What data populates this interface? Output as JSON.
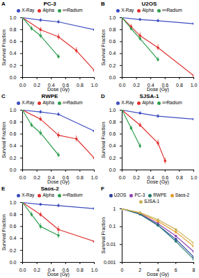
{
  "chart_data": [
    {
      "type": "line",
      "panel": "A",
      "title": "PC-3",
      "xlabel": "Dose (Gy)",
      "ylabel": "Survival Fraction",
      "xlim": [
        0,
        1
      ],
      "xticks": [
        {
          "value": 0,
          "label": "0.0"
        },
        {
          "value": 0.2,
          "label": "0.2"
        },
        {
          "value": 0.4,
          "label": "0.4"
        },
        {
          "value": 0.6,
          "label": "0.6"
        },
        {
          "value": 0.8,
          "label": "0.8"
        },
        {
          "value": 1,
          "label": "1.0"
        }
      ],
      "ylim": [
        0,
        1
      ],
      "yticks": [
        {
          "value": 0,
          "label": "0.0"
        },
        {
          "value": 0.2,
          "label": "0.2"
        },
        {
          "value": 0.4,
          "label": "0.4"
        },
        {
          "value": 0.6,
          "label": "0.6"
        },
        {
          "value": 0.8,
          "label": "0.8"
        },
        {
          "value": 1,
          "label": "1.0"
        }
      ],
      "legend": "top",
      "marker": "circle",
      "series": [
        {
          "name": "X-Ray",
          "color": "#3b4cc0",
          "x": [
            0,
            0.25,
            0.5,
            1
          ],
          "values": [
            1,
            0.96,
            0.93,
            0.8
          ],
          "errors": [
            0.02,
            0.03,
            0.03,
            0.05
          ]
        },
        {
          "name": "Alpha",
          "color": "#e0302e",
          "x": [
            0,
            0.25,
            0.5,
            0.75,
            1
          ],
          "values": [
            1,
            0.8,
            0.68,
            0.45,
            0.12
          ],
          "errors": [
            0.02,
            0.04,
            0.05,
            0.05,
            0.04
          ]
        },
        {
          "name": "²²³Radium",
          "color": "#2e9e4f",
          "x": [
            0,
            0.125,
            0.25,
            0.5
          ],
          "values": [
            1,
            0.82,
            0.7,
            0.35
          ],
          "errors": [
            0.02,
            0.04,
            0.05,
            0.04
          ]
        }
      ]
    },
    {
      "type": "line",
      "panel": "B",
      "title": "U2OS",
      "xlabel": "Dose (Gy)",
      "ylabel": "Survival Fraction",
      "xlim": [
        0,
        1
      ],
      "xticks": [
        {
          "value": 0,
          "label": "0.0"
        },
        {
          "value": 0.2,
          "label": "0.2"
        },
        {
          "value": 0.4,
          "label": "0.4"
        },
        {
          "value": 0.6,
          "label": "0.6"
        },
        {
          "value": 0.8,
          "label": "0.8"
        },
        {
          "value": 1,
          "label": "1.0"
        }
      ],
      "ylim": [
        0,
        1
      ],
      "yticks": [
        {
          "value": 0,
          "label": "0.0"
        },
        {
          "value": 0.2,
          "label": "0.2"
        },
        {
          "value": 0.4,
          "label": "0.4"
        },
        {
          "value": 0.6,
          "label": "0.6"
        },
        {
          "value": 0.8,
          "label": "0.8"
        },
        {
          "value": 1,
          "label": "1.0"
        }
      ],
      "legend": "top",
      "marker": "circle",
      "series": [
        {
          "name": "X-Ray",
          "color": "#3b4cc0",
          "x": [
            0,
            0.25,
            0.5,
            1
          ],
          "values": [
            1,
            0.97,
            0.95,
            0.9
          ],
          "errors": [
            0.02,
            0.02,
            0.03,
            0.03
          ]
        },
        {
          "name": "Alpha",
          "color": "#e0302e",
          "x": [
            0,
            0.125,
            0.25,
            0.5,
            1
          ],
          "values": [
            1,
            0.85,
            0.7,
            0.5,
            0.03
          ],
          "errors": [
            0.02,
            0.04,
            0.05,
            0.05,
            0.02
          ]
        },
        {
          "name": "²²³Radium",
          "color": "#2e9e4f",
          "x": [
            0,
            0.125,
            0.25,
            0.5
          ],
          "values": [
            1,
            0.82,
            0.65,
            0.3
          ],
          "errors": [
            0.02,
            0.04,
            0.04,
            0.04
          ]
        }
      ]
    },
    {
      "type": "line",
      "panel": "C",
      "title": "RWPE",
      "xlabel": "Dose (Gy)",
      "ylabel": "Survival Fraction",
      "xlim": [
        0,
        1
      ],
      "xticks": [
        {
          "value": 0,
          "label": "0.0"
        },
        {
          "value": 0.2,
          "label": "0.2"
        },
        {
          "value": 0.4,
          "label": "0.4"
        },
        {
          "value": 0.6,
          "label": "0.6"
        },
        {
          "value": 0.8,
          "label": "0.8"
        },
        {
          "value": 1,
          "label": "1.0"
        }
      ],
      "ylim": [
        0,
        1
      ],
      "yticks": [
        {
          "value": 0,
          "label": "0.0"
        },
        {
          "value": 0.2,
          "label": "0.2"
        },
        {
          "value": 0.4,
          "label": "0.4"
        },
        {
          "value": 0.6,
          "label": "0.6"
        },
        {
          "value": 0.8,
          "label": "0.8"
        },
        {
          "value": 1,
          "label": "1.0"
        }
      ],
      "legend": "top",
      "marker": "circle",
      "series": [
        {
          "name": "X-Ray",
          "color": "#3b4cc0",
          "x": [
            0,
            0.25,
            0.5,
            1
          ],
          "values": [
            1,
            0.97,
            0.93,
            0.65
          ],
          "errors": [
            0.02,
            0.03,
            0.03,
            0.06
          ]
        },
        {
          "name": "Alpha",
          "color": "#e0302e",
          "x": [
            0,
            0.25,
            0.5,
            0.75,
            1
          ],
          "values": [
            1,
            0.85,
            0.58,
            0.52,
            0.2
          ],
          "errors": [
            0.02,
            0.04,
            0.05,
            0.05,
            0.04
          ]
        },
        {
          "name": "²²³Radium",
          "color": "#2e9e4f",
          "x": [
            0,
            0.125,
            0.25,
            0.5
          ],
          "values": [
            1,
            0.75,
            0.62,
            0.25
          ],
          "errors": [
            0.02,
            0.04,
            0.05,
            0.04
          ]
        }
      ]
    },
    {
      "type": "line",
      "panel": "D",
      "title": "SJSA-1",
      "xlabel": "Dose (Gy)",
      "ylabel": "Survival Fraction",
      "xlim": [
        0,
        1
      ],
      "xticks": [
        {
          "value": 0,
          "label": "0.0"
        },
        {
          "value": 0.2,
          "label": "0.2"
        },
        {
          "value": 0.4,
          "label": "0.4"
        },
        {
          "value": 0.6,
          "label": "0.6"
        },
        {
          "value": 0.8,
          "label": "0.8"
        },
        {
          "value": 1,
          "label": "1.0"
        }
      ],
      "ylim": [
        0,
        1
      ],
      "yticks": [
        {
          "value": 0,
          "label": "0.0"
        },
        {
          "value": 0.2,
          "label": "0.2"
        },
        {
          "value": 0.4,
          "label": "0.4"
        },
        {
          "value": 0.6,
          "label": "0.6"
        },
        {
          "value": 0.8,
          "label": "0.8"
        },
        {
          "value": 1,
          "label": "1.0"
        }
      ],
      "legend": "top",
      "marker": "circle",
      "series": [
        {
          "name": "X-Ray",
          "color": "#3b4cc0",
          "x": [
            0,
            0.25,
            0.5,
            1
          ],
          "values": [
            1,
            0.95,
            0.9,
            0.85
          ],
          "errors": [
            0.02,
            0.03,
            0.03,
            0.04
          ]
        },
        {
          "name": "Alpha",
          "color": "#e0302e",
          "x": [
            0,
            0.25,
            0.5,
            0.6
          ],
          "values": [
            1,
            0.75,
            0.45,
            0.15
          ],
          "errors": [
            0.02,
            0.04,
            0.05,
            0.05
          ]
        },
        {
          "name": "²²³Radium",
          "color": "#2e9e4f",
          "x": [
            0,
            0.125,
            0.25
          ],
          "values": [
            1,
            0.7,
            0.4
          ],
          "errors": [
            0.02,
            0.04,
            0.04
          ]
        }
      ]
    },
    {
      "type": "line",
      "panel": "E",
      "title": "Saos-2",
      "xlabel": "Dose (Gy)",
      "ylabel": "Survival Fraction",
      "xlim": [
        0,
        1
      ],
      "xticks": [
        {
          "value": 0,
          "label": "0.0"
        },
        {
          "value": 0.2,
          "label": "0.2"
        },
        {
          "value": 0.4,
          "label": "0.4"
        },
        {
          "value": 0.6,
          "label": "0.6"
        },
        {
          "value": 0.8,
          "label": "0.8"
        },
        {
          "value": 1,
          "label": "1.0"
        }
      ],
      "ylim": [
        0,
        1
      ],
      "yticks": [
        {
          "value": 0,
          "label": "0.0"
        },
        {
          "value": 0.2,
          "label": "0.2"
        },
        {
          "value": 0.4,
          "label": "0.4"
        },
        {
          "value": 0.6,
          "label": "0.6"
        },
        {
          "value": 0.8,
          "label": "0.8"
        },
        {
          "value": 1,
          "label": "1.0"
        }
      ],
      "legend": "top",
      "marker": "circle",
      "series": [
        {
          "name": "X-Ray",
          "color": "#3b4cc0",
          "x": [
            0,
            0.25,
            0.5,
            1
          ],
          "values": [
            1,
            0.97,
            0.95,
            0.9
          ],
          "errors": [
            0.02,
            0.02,
            0.03,
            0.03
          ]
        },
        {
          "name": "Alpha",
          "color": "#e0302e",
          "x": [
            0,
            0.25,
            0.5,
            1
          ],
          "values": [
            1,
            0.8,
            0.55,
            0.35
          ],
          "errors": [
            0.02,
            0.04,
            0.05,
            0.05
          ]
        },
        {
          "name": "²²³Radium",
          "color": "#2e9e4f",
          "x": [
            0,
            0.125,
            0.25,
            0.5
          ],
          "values": [
            1,
            0.8,
            0.6,
            0.45
          ],
          "errors": [
            0.02,
            0.04,
            0.05,
            0.05
          ]
        }
      ]
    },
    {
      "type": "line",
      "panel": "F",
      "xlabel": "Dose (Gy)",
      "ylabel": "Survival Fraction",
      "log": "y",
      "xlim": [
        0,
        8
      ],
      "xticks": [
        0,
        2,
        4,
        6,
        8
      ],
      "ylim": [
        0.001,
        1
      ],
      "yticks": [
        0.001,
        0.01,
        0.1,
        1
      ],
      "legend": "top",
      "marker": "circle",
      "series": [
        {
          "name": "U2OS",
          "color": "#2c3e9e",
          "x": [
            0,
            2,
            4,
            6,
            8
          ],
          "values": [
            1,
            0.5,
            0.12,
            0.02,
            0.002
          ]
        },
        {
          "name": "PC-3",
          "color": "#8e44ad",
          "x": [
            0,
            2,
            4,
            6,
            8
          ],
          "values": [
            1,
            0.55,
            0.15,
            0.03,
            0.004
          ]
        },
        {
          "name": "RWPE",
          "color": "#1f7a6d",
          "x": [
            0,
            2,
            4,
            6,
            8
          ],
          "values": [
            1,
            0.5,
            0.12,
            0.015,
            0.0015
          ]
        },
        {
          "name": "Saos-2",
          "color": "#e39a2b",
          "x": [
            0,
            2,
            4,
            6,
            8
          ],
          "values": [
            1,
            0.6,
            0.2,
            0.05,
            0.008
          ]
        },
        {
          "name": "SJSA-1",
          "color": "#c9b458",
          "x": [
            0,
            2,
            4,
            6,
            8
          ],
          "values": [
            1,
            0.62,
            0.25,
            0.07,
            0.012
          ]
        }
      ]
    }
  ]
}
